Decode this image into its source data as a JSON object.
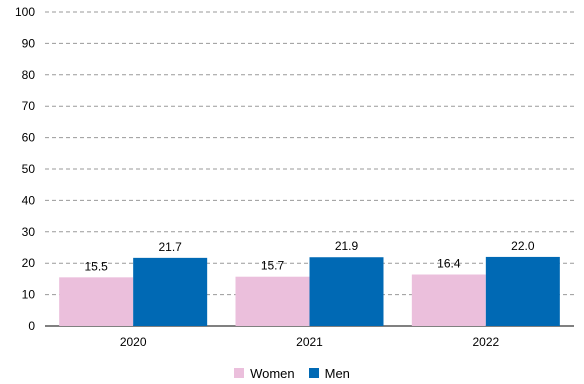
{
  "chart_data": {
    "type": "bar",
    "categories": [
      "2020",
      "2021",
      "2022"
    ],
    "series": [
      {
        "name": "Women",
        "values": [
          15.5,
          15.7,
          16.4
        ],
        "labels": [
          "15.5",
          "15.7",
          "16.4"
        ],
        "color": "#ebbfdc"
      },
      {
        "name": "Men",
        "values": [
          21.7,
          21.9,
          22.0
        ],
        "labels": [
          "21.7",
          "21.9",
          "22.0"
        ],
        "color": "#0069b4"
      }
    ],
    "ylim": [
      0,
      100
    ],
    "yticks": [
      0,
      10,
      20,
      30,
      40,
      50,
      60,
      70,
      80,
      90,
      100
    ],
    "grid": true,
    "grid_style": "dashed",
    "legend": "bottom-center"
  }
}
